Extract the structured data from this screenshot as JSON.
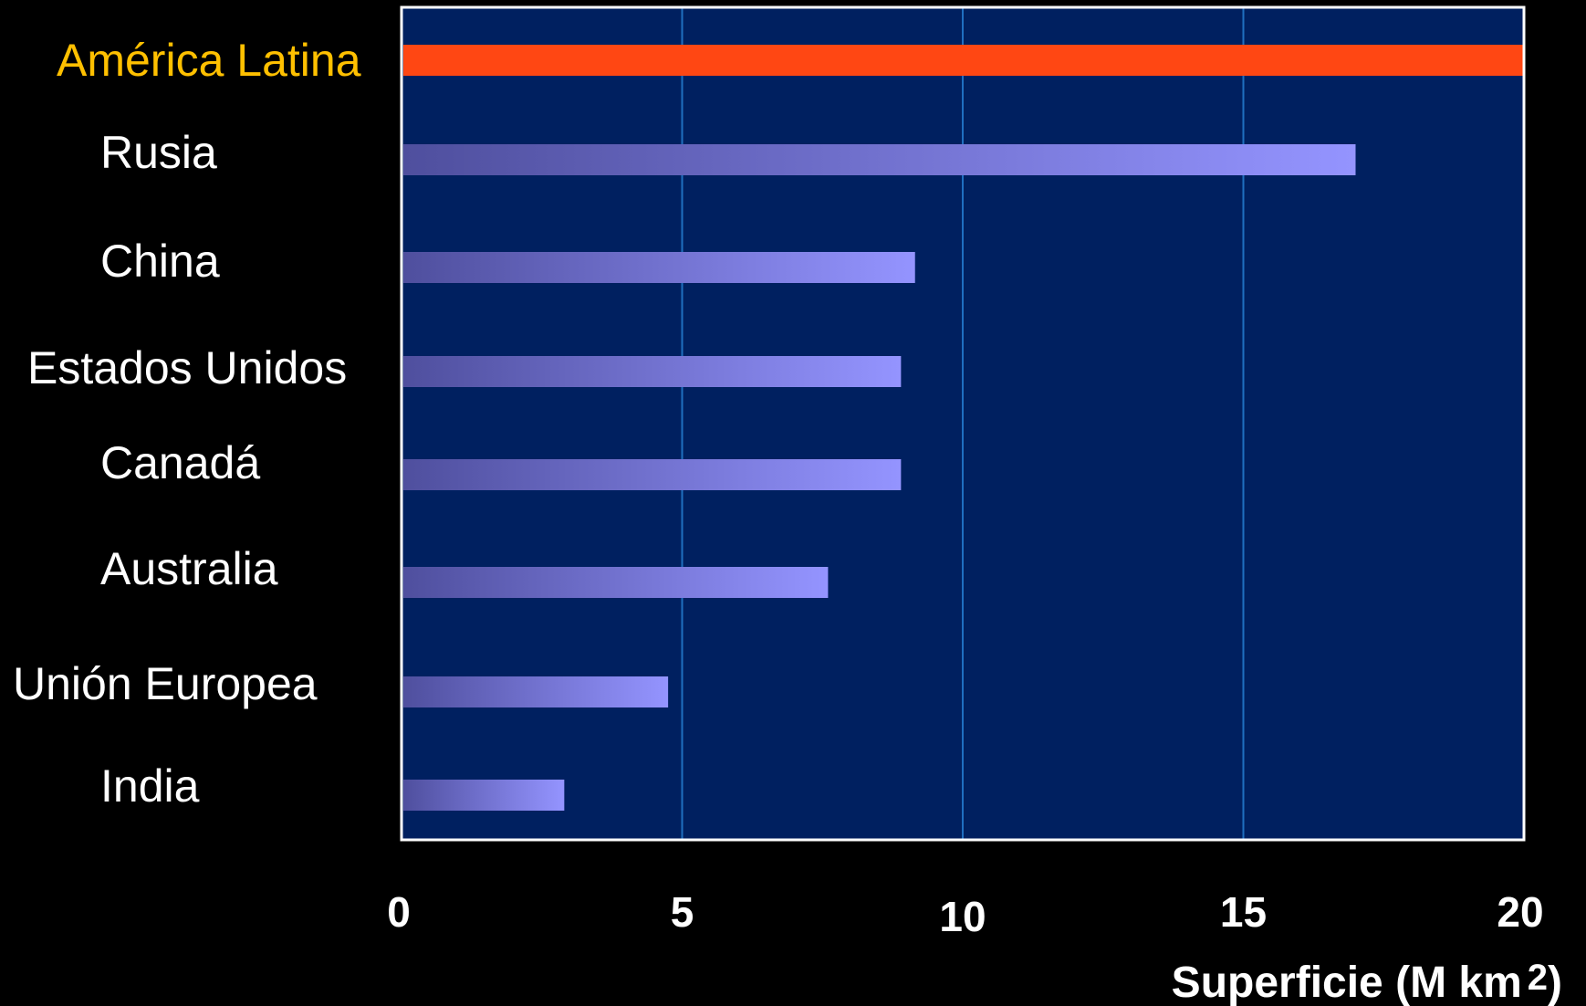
{
  "chart_data": {
    "type": "bar",
    "orientation": "horizontal",
    "categories": [
      "América Latina",
      "Rusia",
      "China",
      "Estados Unidos",
      "Canadá",
      "Australia",
      "Unión Europea",
      "India"
    ],
    "values": [
      20.0,
      17.0,
      9.15,
      8.9,
      8.9,
      7.6,
      4.75,
      2.9
    ],
    "highlight_category": "América Latina",
    "xlabel": "Superficie (M km",
    "xlabel_superscript": "2",
    "xlabel_suffix": ")",
    "xlim": [
      0,
      20
    ],
    "xticks": [
      0,
      5,
      10,
      15,
      20
    ],
    "xtick_labels": [
      "0",
      "5",
      "10",
      "15",
      "20"
    ],
    "grid": "vertical",
    "legend": "none"
  },
  "colors": {
    "background": "#000000",
    "plot_area": "#002060",
    "plot_border": "#ffffff",
    "gridline": "#1f6fc0",
    "highlight_bar": "#ff4713",
    "bar_gradient_start": "#4f4f9e",
    "bar_gradient_end": "#9494ff",
    "highlight_label": "#ffc000",
    "label": "#ffffff"
  }
}
